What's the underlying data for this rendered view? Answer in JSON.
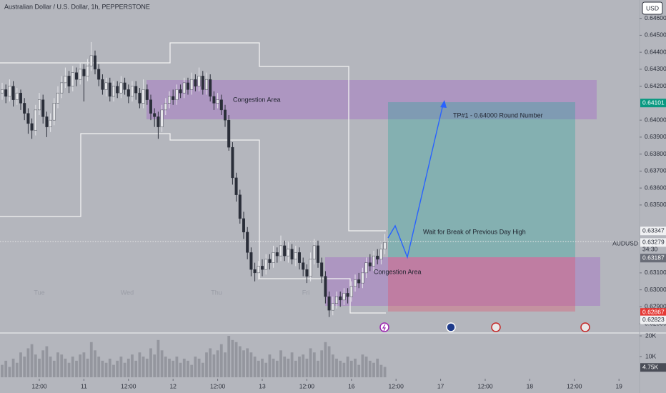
{
  "chart_data": {
    "type": "candlestick",
    "title": "Australian Dollar / U.S. Dollar, 1h, PEPPERSTONE",
    "currency": "USD",
    "symbol": "AUDUSD",
    "countdown": "34:30",
    "session_labels": [
      "Tue",
      "Wed",
      "Thu",
      "Fri"
    ],
    "annotations": [
      "Congestion Area",
      "Congestion Area",
      "TP#1 - 0.64000 Round Number",
      "Wait for Break of Previous Day High"
    ],
    "up_color": "#e6e7ea",
    "down_color": "#2a2e39",
    "volume_color": "#8e9099",
    "xlim": [
      -0.5,
      171.5
    ],
    "xticks": [
      {
        "value": 10,
        "label": "12:00"
      },
      {
        "value": 22,
        "label": "11"
      },
      {
        "value": 34,
        "label": "12:00"
      },
      {
        "value": 46,
        "label": "12"
      },
      {
        "value": 58,
        "label": "12:00"
      },
      {
        "value": 70,
        "label": "13"
      },
      {
        "value": 82,
        "label": "12:00"
      },
      {
        "value": 94,
        "label": "16"
      },
      {
        "value": 106,
        "label": "12:00"
      },
      {
        "value": 118,
        "label": "17"
      },
      {
        "value": 130,
        "label": "12:00"
      },
      {
        "value": 142,
        "label": "18"
      },
      {
        "value": 154,
        "label": "12:00"
      },
      {
        "value": 166,
        "label": "19"
      }
    ],
    "ylim": [
      0.6275,
      0.647
    ],
    "yticks": [
      {
        "value": 0.646,
        "label": "0.64600"
      },
      {
        "value": 0.645,
        "label": "0.64500"
      },
      {
        "value": 0.644,
        "label": "0.64400"
      },
      {
        "value": 0.643,
        "label": "0.64300"
      },
      {
        "value": 0.642,
        "label": "0.64200"
      },
      {
        "value": 0.64,
        "label": "0.64000"
      },
      {
        "value": 0.639,
        "label": "0.63900"
      },
      {
        "value": 0.638,
        "label": "0.63800"
      },
      {
        "value": 0.637,
        "label": "0.63700"
      },
      {
        "value": 0.636,
        "label": "0.63600"
      },
      {
        "value": 0.635,
        "label": "0.63500"
      },
      {
        "value": 0.631,
        "label": "0.63100"
      },
      {
        "value": 0.63,
        "label": "0.63000"
      },
      {
        "value": 0.629,
        "label": "0.62900"
      },
      {
        "value": 0.628,
        "label": "0.62800"
      }
    ],
    "price_tags": [
      {
        "value": 0.64101,
        "label": "0.64101",
        "color": "#089981"
      },
      {
        "value": 0.63347,
        "label": "0.63347",
        "color": "#f0f1f3"
      },
      {
        "value": 0.63279,
        "label": "0.63279",
        "color": "#f0f1f3"
      },
      {
        "value": 0.63187,
        "label": "0.63187",
        "color": "#6a6d78"
      },
      {
        "value": 0.62867,
        "label": "0.62867",
        "color": "#e53935"
      },
      {
        "value": 0.62823,
        "label": "0.62823",
        "color": "#f0f1f3"
      }
    ],
    "open": [
      0.6416,
      0.6418,
      0.6414,
      0.642,
      0.6412,
      0.6416,
      0.641,
      0.6404,
      0.6398,
      0.6394,
      0.6406,
      0.6412,
      0.6402,
      0.6396,
      0.64,
      0.641,
      0.6416,
      0.6422,
      0.6426,
      0.642,
      0.6428,
      0.6424,
      0.643,
      0.6426,
      0.6432,
      0.6438,
      0.643,
      0.6424,
      0.6418,
      0.6422,
      0.6414,
      0.642,
      0.6416,
      0.6422,
      0.6418,
      0.6414,
      0.642,
      0.6416,
      0.641,
      0.6418,
      0.6412,
      0.6404,
      0.6402,
      0.6396,
      0.6406,
      0.641,
      0.6414,
      0.6412,
      0.6418,
      0.6416,
      0.6422,
      0.6418,
      0.6424,
      0.642,
      0.6426,
      0.6418,
      0.6424,
      0.6414,
      0.641,
      0.6412,
      0.6406,
      0.64,
      0.6384,
      0.6366,
      0.6356,
      0.6342,
      0.6334,
      0.6322,
      0.6312,
      0.631,
      0.6314,
      0.6312,
      0.6318,
      0.6316,
      0.6322,
      0.632,
      0.6326,
      0.632,
      0.6324,
      0.6318,
      0.6322,
      0.6316,
      0.6312,
      0.6308,
      0.6318,
      0.6326,
      0.6316,
      0.6308,
      0.6296,
      0.6288,
      0.6292,
      0.6296,
      0.6294,
      0.6298,
      0.6296,
      0.6302,
      0.6306,
      0.6304,
      0.631,
      0.6316,
      0.6314,
      0.632,
      0.6318,
      0.6324
    ],
    "high": [
      0.6422,
      0.6421,
      0.6424,
      0.6423,
      0.6419,
      0.6418,
      0.6413,
      0.6407,
      0.6401,
      0.6409,
      0.6416,
      0.6415,
      0.6405,
      0.6404,
      0.6413,
      0.642,
      0.6426,
      0.6431,
      0.6429,
      0.6432,
      0.6431,
      0.6434,
      0.6433,
      0.6436,
      0.6446,
      0.6441,
      0.6433,
      0.6427,
      0.6425,
      0.6425,
      0.6423,
      0.6423,
      0.6426,
      0.6425,
      0.6421,
      0.6423,
      0.6423,
      0.6419,
      0.6424,
      0.6421,
      0.6415,
      0.6407,
      0.6405,
      0.6409,
      0.6413,
      0.6417,
      0.6418,
      0.6421,
      0.6421,
      0.6425,
      0.6425,
      0.6428,
      0.6427,
      0.6431,
      0.6429,
      0.6428,
      0.6427,
      0.6417,
      0.6416,
      0.6415,
      0.6409,
      0.6403,
      0.6387,
      0.6369,
      0.6359,
      0.6346,
      0.6337,
      0.6325,
      0.6316,
      0.6317,
      0.6318,
      0.6321,
      0.6321,
      0.6326,
      0.6325,
      0.6332,
      0.6329,
      0.6328,
      0.6327,
      0.6326,
      0.6325,
      0.6319,
      0.6315,
      0.6322,
      0.633,
      0.6329,
      0.6319,
      0.6311,
      0.6299,
      0.6296,
      0.6299,
      0.6299,
      0.6301,
      0.6301,
      0.6305,
      0.6309,
      0.631,
      0.6313,
      0.6319,
      0.6321,
      0.6323,
      0.6324,
      0.6327,
      0.6333
    ],
    "low": [
      0.6412,
      0.641,
      0.6411,
      0.6408,
      0.6409,
      0.6406,
      0.64,
      0.6392,
      0.6389,
      0.6391,
      0.6403,
      0.6398,
      0.639,
      0.6393,
      0.6397,
      0.6407,
      0.6413,
      0.6419,
      0.6416,
      0.6417,
      0.642,
      0.6421,
      0.6411,
      0.6423,
      0.6429,
      0.6427,
      0.642,
      0.6415,
      0.6414,
      0.6411,
      0.6411,
      0.6413,
      0.6413,
      0.6415,
      0.641,
      0.6411,
      0.6412,
      0.6407,
      0.6407,
      0.6409,
      0.64,
      0.6396,
      0.6389,
      0.6393,
      0.6403,
      0.6407,
      0.6409,
      0.6409,
      0.6413,
      0.6413,
      0.6415,
      0.6415,
      0.6417,
      0.6417,
      0.6415,
      0.6415,
      0.6411,
      0.6406,
      0.6407,
      0.6403,
      0.6396,
      0.6382,
      0.6362,
      0.6352,
      0.6339,
      0.633,
      0.6318,
      0.6308,
      0.6305,
      0.6306,
      0.6308,
      0.6309,
      0.6312,
      0.6313,
      0.6316,
      0.6317,
      0.6317,
      0.6316,
      0.6315,
      0.6314,
      0.6312,
      0.6308,
      0.6304,
      0.6305,
      0.6315,
      0.6313,
      0.6304,
      0.6292,
      0.6284,
      0.6285,
      0.6289,
      0.629,
      0.6291,
      0.6292,
      0.6293,
      0.6299,
      0.6301,
      0.6301,
      0.6307,
      0.6311,
      0.6311,
      0.6315,
      0.6315,
      0.6321
    ],
    "close": [
      0.6418,
      0.6414,
      0.642,
      0.6412,
      0.6416,
      0.641,
      0.6404,
      0.6398,
      0.6394,
      0.6406,
      0.6412,
      0.6402,
      0.6396,
      0.64,
      0.641,
      0.6416,
      0.6422,
      0.6426,
      0.642,
      0.6428,
      0.6424,
      0.643,
      0.6426,
      0.6432,
      0.6438,
      0.643,
      0.6424,
      0.6418,
      0.6422,
      0.6414,
      0.642,
      0.6416,
      0.6422,
      0.6418,
      0.6414,
      0.642,
      0.6416,
      0.641,
      0.6418,
      0.6412,
      0.6404,
      0.6402,
      0.6396,
      0.6406,
      0.641,
      0.6414,
      0.6412,
      0.6418,
      0.6416,
      0.6422,
      0.6418,
      0.6424,
      0.642,
      0.6426,
      0.6418,
      0.6424,
      0.6414,
      0.641,
      0.6412,
      0.6406,
      0.64,
      0.6384,
      0.6366,
      0.6356,
      0.6342,
      0.6334,
      0.6322,
      0.6312,
      0.631,
      0.6314,
      0.6312,
      0.6318,
      0.6316,
      0.6322,
      0.632,
      0.6326,
      0.632,
      0.6324,
      0.6318,
      0.6322,
      0.6316,
      0.6312,
      0.6308,
      0.6318,
      0.6326,
      0.6316,
      0.6308,
      0.6296,
      0.6288,
      0.6292,
      0.6296,
      0.6294,
      0.6298,
      0.6296,
      0.6302,
      0.6306,
      0.6304,
      0.631,
      0.6316,
      0.6314,
      0.632,
      0.6318,
      0.6324,
      0.6328
    ],
    "volume": [
      6,
      8,
      5,
      9,
      7,
      12,
      10,
      14,
      16,
      11,
      9,
      13,
      15,
      10,
      8,
      12,
      11,
      9,
      7,
      10,
      8,
      11,
      12,
      9,
      17,
      13,
      10,
      8,
      7,
      9,
      6,
      8,
      10,
      7,
      9,
      11,
      8,
      12,
      10,
      9,
      14,
      11,
      18,
      13,
      10,
      9,
      8,
      10,
      7,
      9,
      8,
      6,
      10,
      9,
      7,
      12,
      14,
      11,
      13,
      16,
      12,
      20,
      18,
      17,
      15,
      13,
      14,
      12,
      10,
      8,
      9,
      7,
      11,
      9,
      8,
      13,
      10,
      9,
      12,
      8,
      10,
      11,
      9,
      14,
      12,
      8,
      13,
      17,
      15,
      11,
      9,
      8,
      7,
      10,
      8,
      9,
      6,
      11,
      10,
      8,
      7,
      9,
      6,
      5
    ],
    "volume_ylim": [
      0,
      21.4
    ],
    "volume_ticks": [
      {
        "value": 20,
        "label": "20K"
      },
      {
        "value": 10,
        "label": "10K"
      }
    ],
    "volume_tag": {
      "value": 4.75,
      "label": "4.75K"
    }
  }
}
